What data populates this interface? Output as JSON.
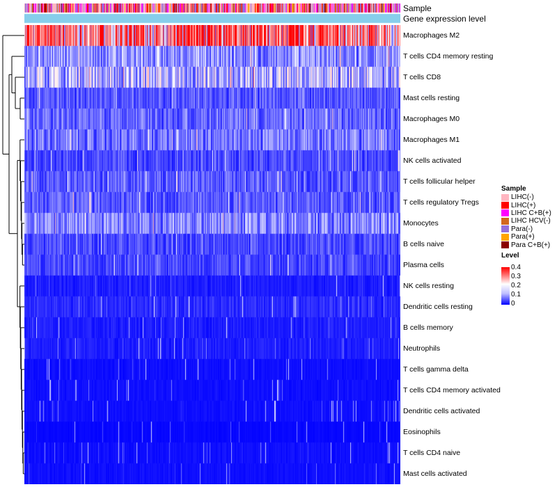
{
  "annotations": {
    "sample_label": "Sample",
    "gene_expression_label": "Gene expression level"
  },
  "chart_data": {
    "type": "heatmap",
    "title": "",
    "n_samples": 540,
    "rows": [
      {
        "label": "Macrophages M2",
        "mean": 0.3
      },
      {
        "label": "T cells CD4 memory resting",
        "mean": 0.1
      },
      {
        "label": "T cells CD8",
        "mean": 0.13
      },
      {
        "label": "Mast cells resting",
        "mean": 0.06
      },
      {
        "label": "Macrophages M0",
        "mean": 0.07
      },
      {
        "label": "Macrophages M1",
        "mean": 0.08
      },
      {
        "label": "NK cells activated",
        "mean": 0.05
      },
      {
        "label": "T cells follicular helper",
        "mean": 0.06
      },
      {
        "label": "T cells regulatory  Tregs",
        "mean": 0.06
      },
      {
        "label": "Monocytes",
        "mean": 0.09
      },
      {
        "label": "B cells naive",
        "mean": 0.05
      },
      {
        "label": "Plasma cells",
        "mean": 0.05
      },
      {
        "label": "NK cells resting",
        "mean": 0.02
      },
      {
        "label": "Dendritic cells resting",
        "mean": 0.03
      },
      {
        "label": "B cells memory",
        "mean": 0.02
      },
      {
        "label": "Neutrophils",
        "mean": 0.02
      },
      {
        "label": "T cells gamma delta",
        "mean": 0.01
      },
      {
        "label": "T cells CD4 memory activated",
        "mean": 0.01
      },
      {
        "label": "Dendritic cells activated",
        "mean": 0.01
      },
      {
        "label": "Eosinophils",
        "mean": 0.005
      },
      {
        "label": "T cells CD4 naive",
        "mean": 0.01
      },
      {
        "label": "Mast cells activated",
        "mean": 0.01
      }
    ],
    "color_scale": {
      "min": 0,
      "max": 0.4,
      "low": "#0000ff",
      "mid": "#ffffff",
      "high": "#ff0000"
    },
    "legend": {
      "sample_title": "Sample",
      "sample_categories": [
        {
          "label": "LIHC(-)",
          "color": "#ffb6c1"
        },
        {
          "label": "LIHC(+)",
          "color": "#ff0000"
        },
        {
          "label": "LIHC C+B(+)",
          "color": "#ff00ff"
        },
        {
          "label": "LIHC HCV(-)",
          "color": "#d2691e"
        },
        {
          "label": "Para(-)",
          "color": "#9370db"
        },
        {
          "label": "Para(+)",
          "color": "#ffa500"
        },
        {
          "label": "Para C+B(+)",
          "color": "#8b0000"
        }
      ],
      "level_title": "Level",
      "level_ticks": [
        "0.4",
        "0.3",
        "0.2",
        "0.1",
        "0"
      ],
      "level_tick_values": [
        0.4,
        0.3,
        0.2,
        0.1,
        0
      ]
    },
    "gene_expression_color": "#87ceeb"
  }
}
